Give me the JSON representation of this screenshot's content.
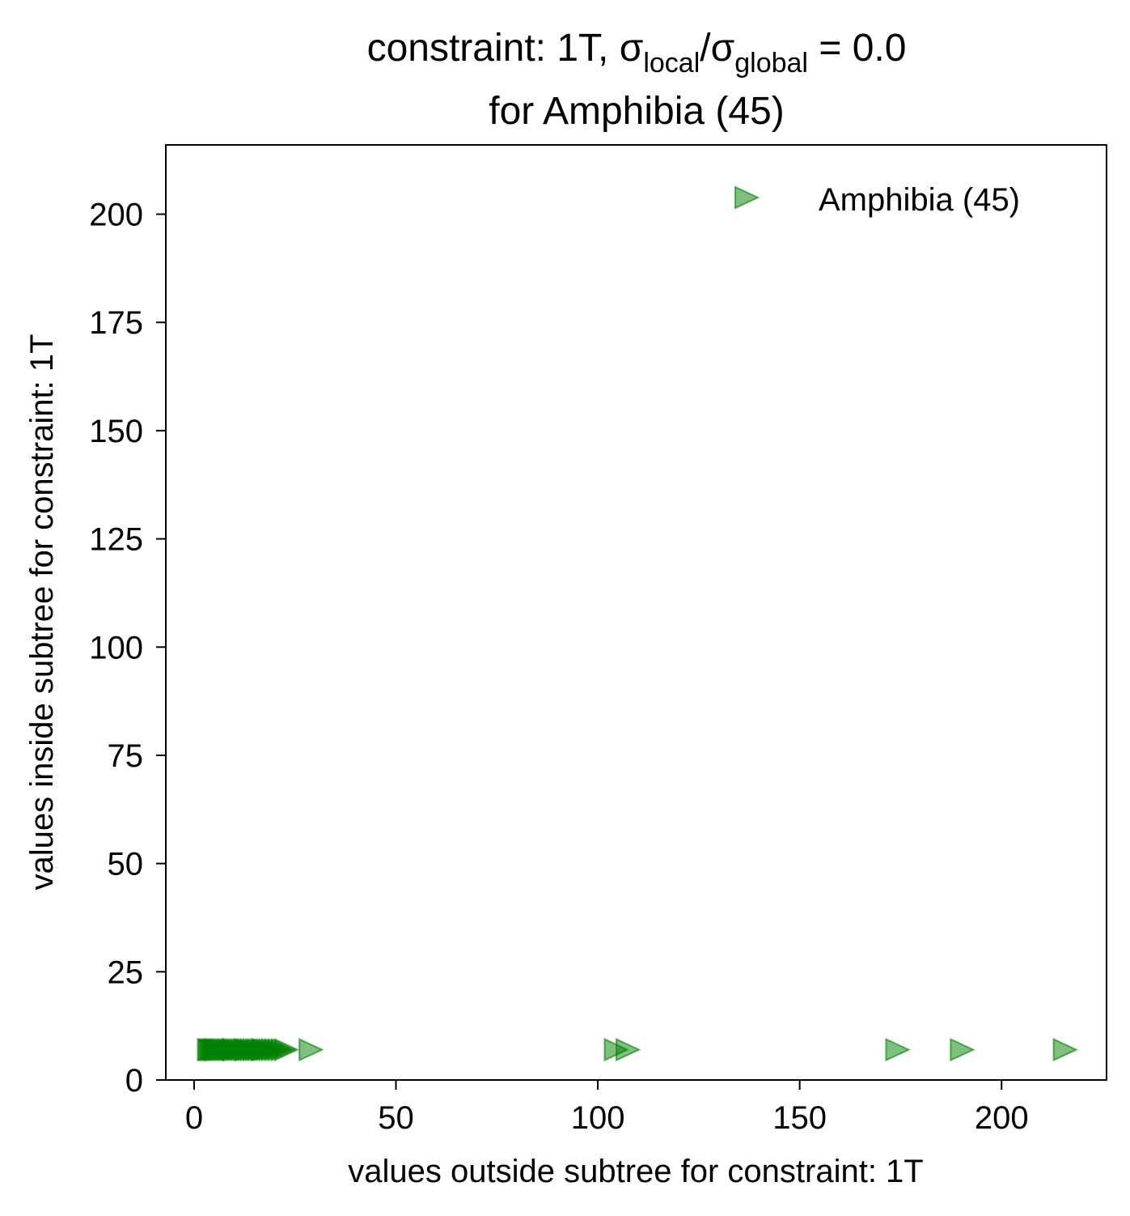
{
  "chart_data": {
    "type": "scatter",
    "title": {
      "line1_prefix": "constraint: 1T, σ",
      "sub1": "local",
      "slash": "/σ",
      "sub2": "global",
      "suffix": " =  0.0",
      "line2": "for Amphibia (45)"
    },
    "xlabel": "values outside subtree for constraint: 1T",
    "ylabel": "values inside subtree for constraint: 1T",
    "xlim": [
      -7,
      226
    ],
    "ylim": [
      0,
      216
    ],
    "xticks": [
      0,
      50,
      100,
      150,
      200
    ],
    "yticks": [
      0,
      25,
      50,
      75,
      100,
      125,
      150,
      175,
      200
    ],
    "grid": false,
    "legend": {
      "position": "top-right",
      "entries": [
        "Amphibia (45)"
      ]
    },
    "series": [
      {
        "name": "Amphibia (45)",
        "marker": "triangle-right",
        "color": "#008000",
        "alpha": 0.5,
        "x": [
          3.8,
          4.2,
          4.6,
          5.0,
          5.4,
          5.8,
          6.2,
          6.6,
          7.0,
          7.5,
          8.0,
          8.5,
          9.0,
          9.5,
          10.0,
          10.6,
          11.2,
          11.8,
          12.4,
          13.0,
          13.6,
          14.2,
          14.8,
          15.4,
          16.0,
          16.7,
          17.4,
          18.1,
          18.8,
          19.5,
          20.2,
          21.0,
          21.8,
          22.6,
          3.5,
          5.2,
          9.8,
          12.8,
          17.0,
          28.7,
          104.3,
          107.2,
          174.0,
          190.0,
          215.5
        ],
        "y": [
          7,
          7,
          7,
          7,
          7,
          7,
          7,
          7,
          7,
          7,
          7,
          7,
          7,
          7,
          7,
          7,
          7,
          7,
          7,
          7,
          7,
          7,
          7,
          7,
          7,
          7,
          7,
          7,
          7,
          7,
          7,
          7,
          7,
          7,
          7,
          7,
          7,
          7,
          7,
          7,
          7,
          7,
          7,
          7,
          7
        ]
      }
    ]
  }
}
